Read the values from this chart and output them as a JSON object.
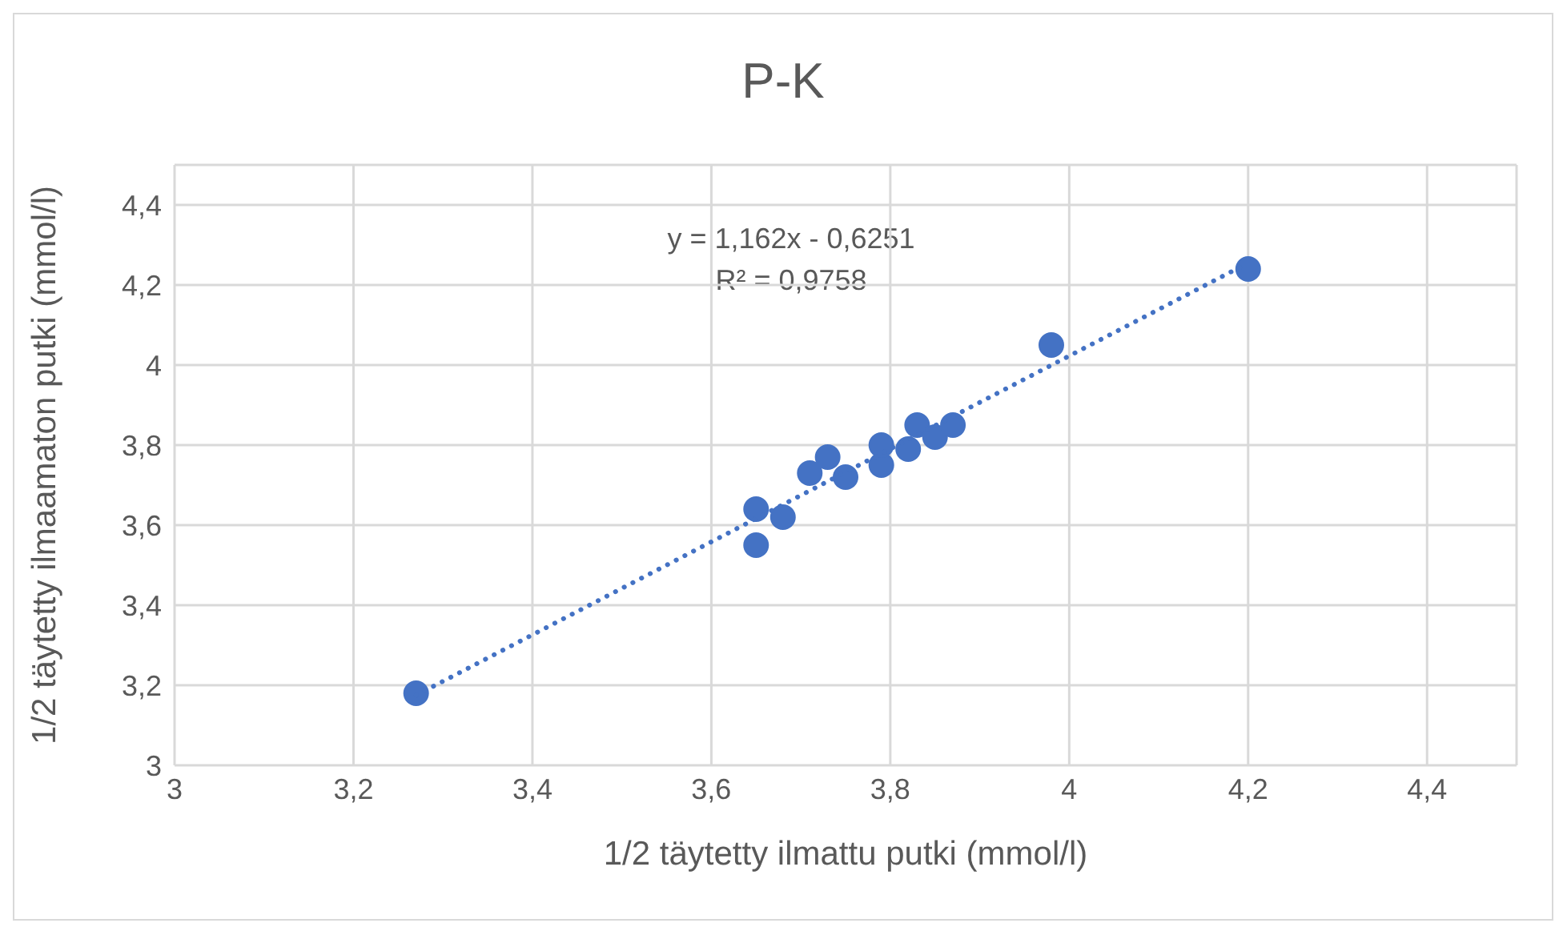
{
  "chart_data": {
    "type": "scatter",
    "title": "P-K",
    "xlabel": "1/2 täytetty ilmattu putki (mmol/l)",
    "ylabel": "1/2 täytetty ilmaamaton putki (mmol/l)",
    "annotations": [
      "y = 1,162x - 0,6251",
      "R² = 0,9758"
    ],
    "x": [
      3.27,
      3.65,
      3.65,
      3.68,
      3.71,
      3.73,
      3.75,
      3.79,
      3.79,
      3.82,
      3.83,
      3.85,
      3.87,
      3.98,
      4.2
    ],
    "series": [
      {
        "color": "#4472c4",
        "marker": "circle",
        "values": [
          3.18,
          3.55,
          3.64,
          3.62,
          3.73,
          3.77,
          3.72,
          3.75,
          3.8,
          3.79,
          3.85,
          3.82,
          3.85,
          4.05,
          4.24
        ]
      },
      {
        "type": "line",
        "color": "#4472c4",
        "marker": "none",
        "line_style": "dotted",
        "x": [
          3.27,
          4.2
        ],
        "values": [
          3.175,
          4.255
        ]
      }
    ],
    "xlim": [
      3,
      4.5
    ],
    "ylim": [
      3,
      4.5
    ],
    "xticks": [
      3,
      {
        "value": 3.2,
        "label": "3,2"
      },
      {
        "value": 3.4,
        "label": "3,4"
      },
      {
        "value": 3.6,
        "label": "3,6"
      },
      {
        "value": 3.8,
        "label": "3,8"
      },
      4,
      {
        "value": 4.2,
        "label": "4,2"
      },
      {
        "value": 4.4,
        "label": "4,4"
      }
    ],
    "yticks": [
      3,
      {
        "value": 3.2,
        "label": "3,2"
      },
      {
        "value": 3.4,
        "label": "3,4"
      },
      {
        "value": 3.6,
        "label": "3,6"
      },
      {
        "value": 3.8,
        "label": "3,8"
      },
      4,
      {
        "value": 4.2,
        "label": "4,2"
      },
      {
        "value": 4.4,
        "label": "4,4"
      }
    ],
    "grid": true,
    "legend": false
  }
}
